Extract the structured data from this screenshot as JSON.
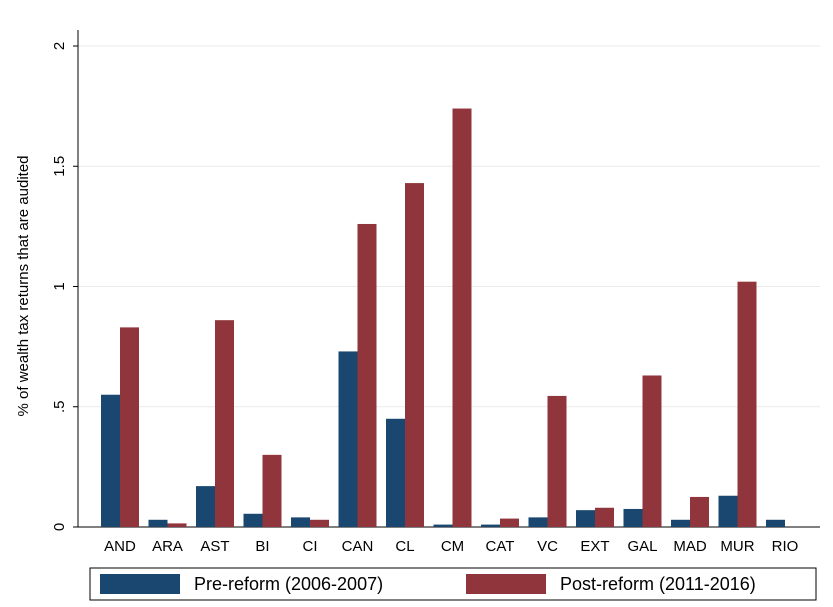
{
  "chart_data": {
    "type": "bar",
    "y_label": "% of wealth tax returns that are audited",
    "categories": [
      "AND",
      "ARA",
      "AST",
      "BI",
      "CI",
      "CAN",
      "CL",
      "CM",
      "CAT",
      "VC",
      "EXT",
      "GAL",
      "MAD",
      "MUR",
      "RIO"
    ],
    "series": [
      {
        "name": "Pre-reform (2006-2007)",
        "color": "#1a476f",
        "values": [
          0.55,
          0.03,
          0.17,
          0.055,
          0.04,
          0.73,
          0.45,
          0.01,
          0.01,
          0.04,
          0.07,
          0.075,
          0.03,
          0.13,
          0.03
        ]
      },
      {
        "name": "Post-reform (2011-2016)",
        "color": "#90353b",
        "values": [
          0.83,
          0.015,
          0.86,
          0.3,
          0.03,
          1.26,
          1.43,
          1.74,
          0.035,
          0.545,
          0.08,
          0.63,
          0.125,
          1.02,
          0
        ]
      }
    ],
    "ylim": [
      0,
      2
    ],
    "yticks": [
      0,
      {
        "value": 0.5,
        "label": ".5"
      },
      1,
      1.5,
      2
    ],
    "grid": true,
    "legend": "bottom"
  }
}
